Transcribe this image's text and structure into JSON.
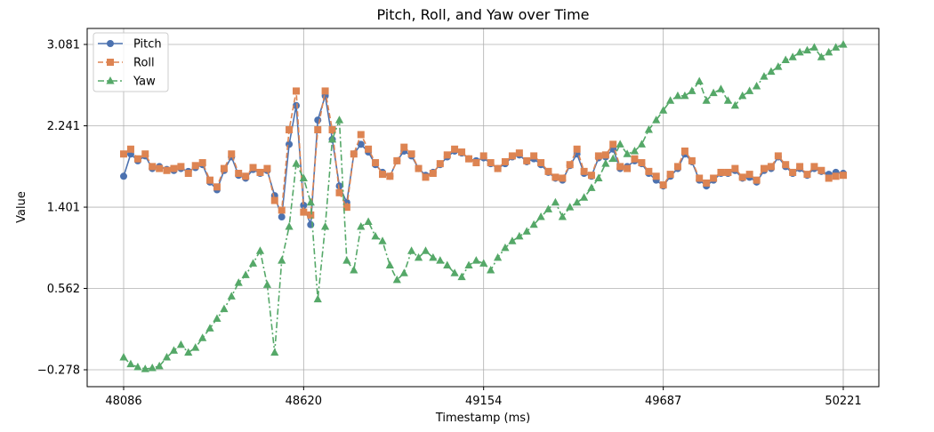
{
  "chart_data": {
    "type": "line",
    "title": "Pitch, Roll, and Yaw over Time",
    "xlabel": "Timestamp (ms)",
    "ylabel": "Value",
    "xlim": [
      48086,
      50221
    ],
    "ylim": [
      -0.278,
      3.081
    ],
    "xticks": [
      "48086",
      "48620",
      "49154",
      "49687",
      "50221"
    ],
    "yticks": [
      "−0.278",
      "0.562",
      "1.401",
      "2.241",
      "3.081"
    ],
    "grid": true,
    "legend_position": "top-left",
    "x": [
      48086,
      48107,
      48128,
      48150,
      48171,
      48192,
      48214,
      48235,
      48256,
      48278,
      48299,
      48320,
      48342,
      48363,
      48384,
      48406,
      48427,
      48448,
      48470,
      48491,
      48512,
      48534,
      48555,
      48577,
      48598,
      48620,
      48641,
      48662,
      48684,
      48705,
      48726,
      48748,
      48769,
      48790,
      48812,
      48833,
      48854,
      48876,
      48897,
      48918,
      48940,
      48961,
      48982,
      49004,
      49025,
      49046,
      49068,
      49089,
      49110,
      49132,
      49154,
      49175,
      49196,
      49218,
      49239,
      49260,
      49282,
      49303,
      49324,
      49346,
      49367,
      49388,
      49410,
      49431,
      49452,
      49474,
      49495,
      49516,
      49538,
      49559,
      49580,
      49602,
      49623,
      49644,
      49666,
      49687,
      49708,
      49730,
      49751,
      49772,
      49794,
      49815,
      49836,
      49858,
      49879,
      49900,
      49922,
      49943,
      49964,
      49986,
      50007,
      50028,
      50050,
      50071,
      50092,
      50114,
      50135,
      50156,
      50178,
      50199,
      50221
    ],
    "series": [
      {
        "name": "Pitch",
        "color": "#4c72b0",
        "marker": "circle",
        "linestyle": "solid",
        "values": [
          1.72,
          1.95,
          1.88,
          1.93,
          1.8,
          1.82,
          1.79,
          1.78,
          1.8,
          1.77,
          1.81,
          1.84,
          1.66,
          1.58,
          1.78,
          1.92,
          1.73,
          1.7,
          1.79,
          1.75,
          1.78,
          1.52,
          1.3,
          2.05,
          2.45,
          1.42,
          1.22,
          2.3,
          2.55,
          2.1,
          1.62,
          1.45,
          1.95,
          2.05,
          1.97,
          1.84,
          1.76,
          1.72,
          1.88,
          1.98,
          1.93,
          1.8,
          1.73,
          1.76,
          1.84,
          1.92,
          1.98,
          1.96,
          1.9,
          1.88,
          1.91,
          1.85,
          1.8,
          1.85,
          1.92,
          1.94,
          1.87,
          1.9,
          1.84,
          1.76,
          1.7,
          1.68,
          1.83,
          1.95,
          1.75,
          1.72,
          1.91,
          1.92,
          2.0,
          1.8,
          1.82,
          1.88,
          1.85,
          1.75,
          1.68,
          1.62,
          1.72,
          1.8,
          1.95,
          1.87,
          1.68,
          1.62,
          1.68,
          1.75,
          1.75,
          1.78,
          1.7,
          1.71,
          1.66,
          1.78,
          1.8,
          1.92,
          1.82,
          1.75,
          1.8,
          1.73,
          1.8,
          1.77,
          1.74,
          1.76,
          1.75
        ]
      },
      {
        "name": "Roll",
        "color": "#dd8452",
        "marker": "square",
        "linestyle": "dashed",
        "values": [
          1.95,
          2.0,
          1.9,
          1.95,
          1.82,
          1.8,
          1.78,
          1.8,
          1.82,
          1.75,
          1.83,
          1.86,
          1.68,
          1.61,
          1.8,
          1.95,
          1.75,
          1.72,
          1.81,
          1.76,
          1.8,
          1.47,
          1.37,
          2.2,
          2.6,
          1.35,
          1.32,
          2.2,
          2.6,
          2.2,
          1.55,
          1.4,
          1.95,
          2.15,
          2.0,
          1.86,
          1.74,
          1.72,
          1.88,
          2.02,
          1.95,
          1.8,
          1.71,
          1.75,
          1.85,
          1.94,
          2.0,
          1.97,
          1.9,
          1.86,
          1.93,
          1.86,
          1.8,
          1.87,
          1.93,
          1.96,
          1.88,
          1.93,
          1.86,
          1.77,
          1.71,
          1.7,
          1.84,
          2.0,
          1.77,
          1.73,
          1.93,
          1.94,
          2.05,
          1.82,
          1.8,
          1.9,
          1.86,
          1.77,
          1.72,
          1.63,
          1.74,
          1.82,
          1.98,
          1.88,
          1.7,
          1.65,
          1.7,
          1.76,
          1.76,
          1.8,
          1.71,
          1.74,
          1.68,
          1.8,
          1.82,
          1.93,
          1.84,
          1.76,
          1.82,
          1.74,
          1.82,
          1.78,
          1.7,
          1.72,
          1.73
        ]
      },
      {
        "name": "Yaw",
        "color": "#55a868",
        "marker": "triangle",
        "linestyle": "dashdot",
        "values": [
          -0.15,
          -0.22,
          -0.25,
          -0.27,
          -0.26,
          -0.24,
          -0.15,
          -0.08,
          -0.02,
          -0.1,
          -0.05,
          0.05,
          0.15,
          0.25,
          0.35,
          0.48,
          0.62,
          0.7,
          0.82,
          0.95,
          0.6,
          -0.1,
          0.85,
          1.2,
          1.85,
          1.7,
          1.45,
          0.45,
          1.2,
          2.1,
          2.3,
          0.85,
          0.75,
          1.2,
          1.25,
          1.1,
          1.05,
          0.8,
          0.65,
          0.72,
          0.95,
          0.88,
          0.95,
          0.88,
          0.85,
          0.8,
          0.72,
          0.68,
          0.8,
          0.85,
          0.82,
          0.75,
          0.88,
          0.98,
          1.05,
          1.1,
          1.15,
          1.22,
          1.3,
          1.38,
          1.45,
          1.3,
          1.4,
          1.45,
          1.5,
          1.6,
          1.7,
          1.85,
          1.9,
          2.05,
          1.95,
          1.98,
          2.05,
          2.2,
          2.3,
          2.4,
          2.5,
          2.55,
          2.55,
          2.6,
          2.7,
          2.5,
          2.58,
          2.62,
          2.5,
          2.45,
          2.55,
          2.6,
          2.65,
          2.75,
          2.8,
          2.85,
          2.92,
          2.95,
          3.0,
          3.02,
          3.05,
          2.95,
          3.0,
          3.05,
          3.08
        ]
      }
    ]
  }
}
